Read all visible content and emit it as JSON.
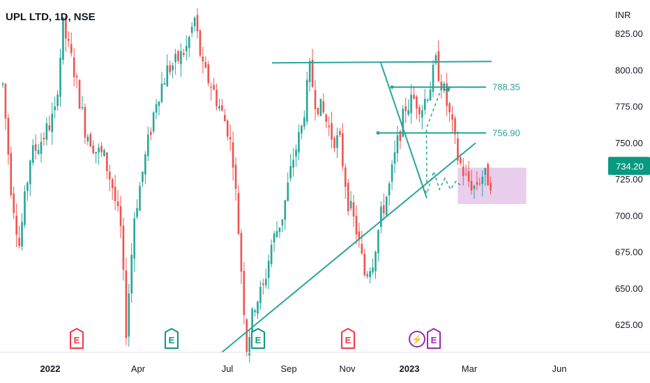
{
  "chart_data": {
    "type": "candlestick",
    "symbol_label": "UPL LTD, 1D, NSE",
    "currency": "INR",
    "current_price": "734.20",
    "y_ticks": [
      "825.00",
      "800.00",
      "775.00",
      "750.00",
      "725.00",
      "700.00",
      "675.00",
      "650.00",
      "625.00"
    ],
    "x_ticks": [
      {
        "label": "2022",
        "bold": true
      },
      {
        "label": "Apr",
        "bold": false
      },
      {
        "label": "Jul",
        "bold": false
      },
      {
        "label": "Sep",
        "bold": false
      },
      {
        "label": "Nov",
        "bold": false
      },
      {
        "label": "2023",
        "bold": true
      },
      {
        "label": "Mar",
        "bold": false
      },
      {
        "label": "Jun",
        "bold": false
      }
    ],
    "ylim": [
      605,
      838
    ],
    "price_path": [
      [
        0,
        790
      ],
      [
        3,
        720
      ],
      [
        6,
        680
      ],
      [
        10,
        740
      ],
      [
        15,
        755
      ],
      [
        19,
        770
      ],
      [
        22,
        830
      ],
      [
        26,
        800
      ],
      [
        30,
        760
      ],
      [
        34,
        745
      ],
      [
        37,
        740
      ],
      [
        40,
        720
      ],
      [
        43,
        690
      ],
      [
        45,
        622
      ],
      [
        48,
        700
      ],
      [
        52,
        740
      ],
      [
        56,
        780
      ],
      [
        60,
        800
      ],
      [
        63,
        805
      ],
      [
        67,
        815
      ],
      [
        70,
        835
      ],
      [
        73,
        800
      ],
      [
        76,
        790
      ],
      [
        79,
        775
      ],
      [
        82,
        760
      ],
      [
        84,
        740
      ],
      [
        86,
        690
      ],
      [
        89,
        610
      ],
      [
        92,
        640
      ],
      [
        95,
        650
      ],
      [
        98,
        680
      ],
      [
        102,
        700
      ],
      [
        106,
        740
      ],
      [
        109,
        760
      ],
      [
        112,
        800
      ],
      [
        114,
        780
      ],
      [
        117,
        770
      ],
      [
        120,
        755
      ],
      [
        123,
        750
      ],
      [
        126,
        710
      ],
      [
        129,
        690
      ],
      [
        132,
        660
      ],
      [
        135,
        670
      ],
      [
        138,
        700
      ],
      [
        141,
        720
      ],
      [
        144,
        750
      ],
      [
        147,
        775
      ],
      [
        150,
        780
      ],
      [
        153,
        775
      ],
      [
        156,
        790
      ],
      [
        158,
        805
      ],
      [
        161,
        785
      ],
      [
        164,
        760
      ],
      [
        166,
        740
      ],
      [
        169,
        725
      ],
      [
        172,
        720
      ],
      [
        175,
        728
      ],
      [
        178,
        724
      ]
    ],
    "horizontal_levels": [
      {
        "value": 788.35,
        "label": "788.35",
        "color": "#26a69a"
      },
      {
        "value": 756.9,
        "label": "756.90",
        "color": "#26a69a"
      }
    ],
    "resistance_line": {
      "value": 805,
      "color": "#26a69a"
    },
    "support_trendline": {
      "from": [
        89,
        606
      ],
      "to": [
        197,
        750
      ],
      "color": "#26a69a"
    },
    "down_trendline": {
      "from": [
        158,
        805
      ],
      "to": [
        172,
        712
      ],
      "color": "#26a69a"
    },
    "consolidation_zone": {
      "from_x": 166,
      "to_x": 191,
      "low": 708,
      "high": 733,
      "color": "#e1bee7"
    },
    "projection_path": [
      [
        174,
        712
      ],
      [
        180,
        760
      ],
      [
        186,
        790
      ]
    ],
    "projection_path_2": [
      [
        174,
        712
      ],
      [
        178,
        730
      ],
      [
        182,
        718
      ],
      [
        186,
        728
      ],
      [
        189,
        718
      ],
      [
        191,
        726
      ]
    ],
    "event_markers": [
      {
        "label": "E",
        "type": "earnings",
        "color": "#f23645"
      },
      {
        "label": "E",
        "type": "earnings",
        "color": "#089981"
      },
      {
        "label": "E",
        "type": "earnings",
        "color": "#089981"
      },
      {
        "label": "E",
        "type": "earnings",
        "color": "#f23645"
      },
      {
        "label": "⚡",
        "type": "dividend",
        "color": "#9c27b0"
      },
      {
        "label": "E",
        "type": "earnings",
        "color": "#9c27b0"
      }
    ],
    "colors": {
      "up": "#26a69a",
      "down": "#ef5350",
      "line": "#26a69a"
    }
  }
}
